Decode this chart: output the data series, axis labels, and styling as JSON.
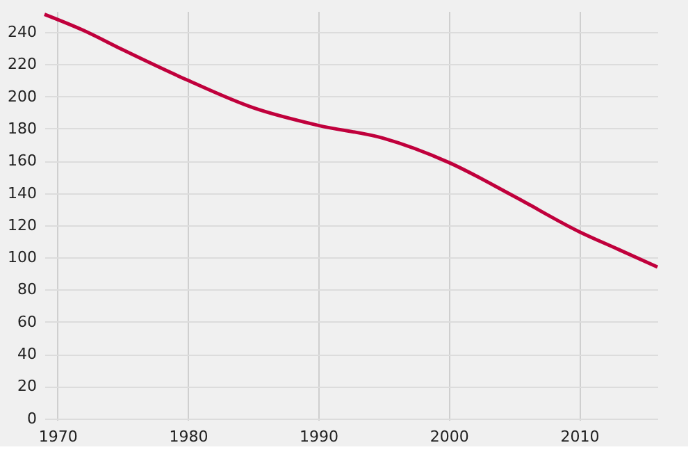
{
  "chart_data": {
    "type": "line",
    "x": [
      1969,
      1972,
      1975,
      1980,
      1985,
      1990,
      1995,
      2000,
      2005,
      2010,
      2013,
      2016
    ],
    "series": [
      {
        "color": "#c0003c",
        "values": [
          251,
          241,
          229,
          210,
          193,
          182,
          174,
          159,
          138,
          116,
          105,
          94
        ]
      }
    ],
    "xlim": [
      1969,
      2016
    ],
    "xticks": [
      1970,
      1980,
      1990,
      2000,
      2010
    ],
    "ylim": [
      -1,
      253
    ],
    "yticks": [
      0,
      20,
      40,
      60,
      80,
      100,
      120,
      140,
      160,
      180,
      200,
      220,
      240
    ],
    "grid": true,
    "marker": "none",
    "line_style": "solid",
    "legend": false
  }
}
